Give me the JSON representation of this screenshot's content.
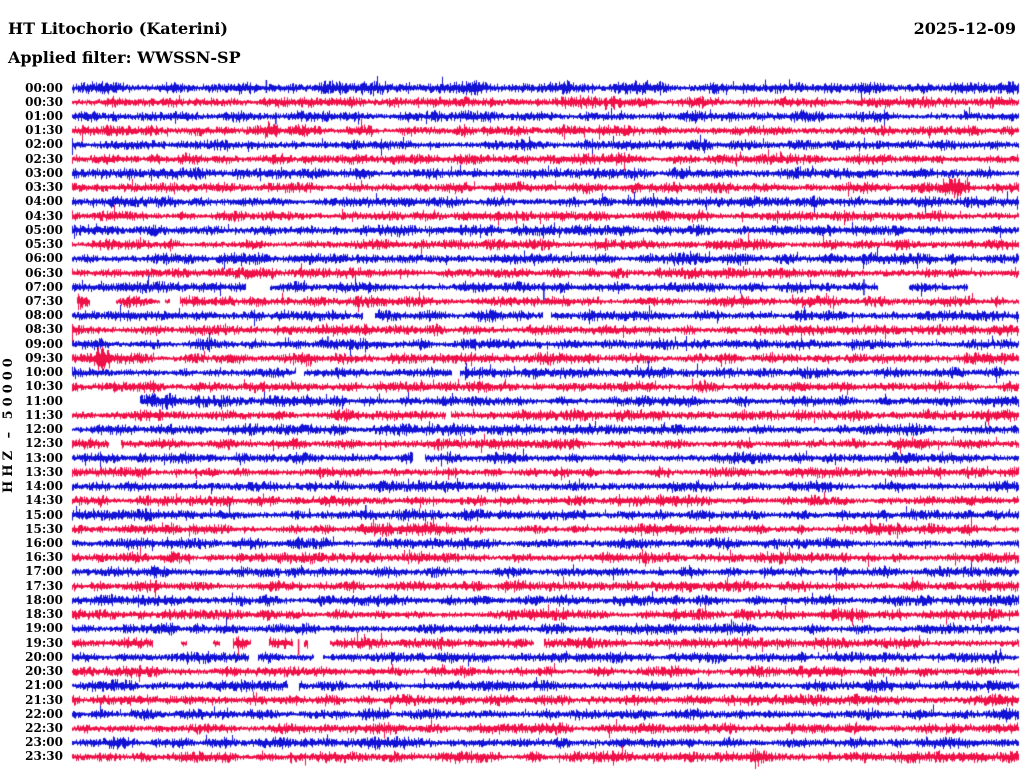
{
  "header": {
    "station": "HT Litochorio (Katerini)",
    "date": "2025-12-09",
    "filter_label": "Applied filter: WWSSN-SP",
    "scale_label": "HHZ – 50000"
  },
  "colors": {
    "blue": "#1212D6",
    "red": "#EF1048",
    "background": "#FFFFFF",
    "text": "#000000"
  },
  "chart_data": {
    "type": "helicorder",
    "title": "HT Litochorio (Katerini)",
    "date": "2025-12-09",
    "filter": "WWSSN-SP",
    "channel_scale": "HHZ – 50000",
    "row_interval_minutes": 30,
    "start_time": "00:00",
    "end_time": "23:30",
    "legend": "alternating blue/red rows, one row per 30 minutes, continuous seismic noise",
    "rows": [
      {
        "t": "00:00",
        "color": "blue",
        "amp": 1.15,
        "events": [
          {
            "type": "spike",
            "x": 0.205,
            "up": 8,
            "dn": 5
          }
        ]
      },
      {
        "t": "00:30",
        "color": "red"
      },
      {
        "t": "01:00",
        "color": "blue",
        "events": [
          {
            "type": "spike",
            "x": 0.215,
            "up": 4,
            "dn": 8
          }
        ]
      },
      {
        "t": "01:30",
        "color": "red",
        "events": [
          {
            "type": "burst",
            "x": 0.21,
            "w": 0.02,
            "amp": 1.8
          }
        ]
      },
      {
        "t": "02:00",
        "color": "blue"
      },
      {
        "t": "02:30",
        "color": "red"
      },
      {
        "t": "03:00",
        "color": "blue"
      },
      {
        "t": "03:30",
        "color": "red",
        "events": [
          {
            "type": "burst",
            "x": 0.932,
            "w": 0.04,
            "amp": 2.3
          }
        ]
      },
      {
        "t": "04:00",
        "color": "blue"
      },
      {
        "t": "04:30",
        "color": "red"
      },
      {
        "t": "05:00",
        "color": "blue"
      },
      {
        "t": "05:30",
        "color": "red"
      },
      {
        "t": "06:00",
        "color": "blue"
      },
      {
        "t": "06:30",
        "color": "red"
      },
      {
        "t": "07:00",
        "color": "blue",
        "segments": [
          [
            0,
            0.183
          ],
          [
            0.209,
            0.851
          ],
          [
            0.883,
            0.946
          ]
        ],
        "events": [
          {
            "type": "spike",
            "x": 0.498,
            "up": 5,
            "dn": 15
          },
          {
            "type": "spike",
            "x": 0.836,
            "up": 8,
            "dn": 8
          }
        ]
      },
      {
        "t": "07:30",
        "color": "red",
        "segments": [
          [
            0.005,
            0.018
          ],
          [
            0.046,
            0.092
          ],
          [
            0.098,
            0.103
          ],
          [
            0.113,
            1.0
          ]
        ],
        "events": [
          {
            "type": "burst",
            "x": 0.011,
            "w": 0.014,
            "amp": 2.0
          },
          {
            "type": "burst",
            "x": 0.069,
            "w": 0.046,
            "amp": 1.3
          }
        ]
      },
      {
        "t": "08:00",
        "color": "blue",
        "segments": [
          [
            0,
            0.307
          ],
          [
            0.319,
            0.497
          ],
          [
            0.505,
            1.0
          ]
        ],
        "events": [
          {
            "type": "burst",
            "x": 0.43,
            "w": 0.08,
            "amp": 1.3
          }
        ]
      },
      {
        "t": "08:30",
        "color": "red"
      },
      {
        "t": "09:00",
        "color": "blue",
        "events": [
          {
            "type": "spike",
            "x": 0.27,
            "up": 8,
            "dn": 4
          }
        ]
      },
      {
        "t": "09:30",
        "color": "red",
        "events": [
          {
            "type": "burst",
            "x": 0.033,
            "w": 0.025,
            "amp": 2.4
          },
          {
            "type": "burst",
            "x": 0.245,
            "w": 0.02,
            "amp": 1.5
          }
        ]
      },
      {
        "t": "10:00",
        "color": "blue",
        "segments": [
          [
            0,
            0.236
          ],
          [
            0.244,
            0.401
          ],
          [
            0.409,
            1.0
          ]
        ]
      },
      {
        "t": "10:30",
        "color": "red"
      },
      {
        "t": "11:00",
        "color": "blue",
        "segments": [
          [
            0.071,
            1.0
          ]
        ],
        "events": [
          {
            "type": "burst",
            "x": 0.095,
            "w": 0.05,
            "amp": 2.2
          },
          {
            "type": "burst",
            "x": 0.6,
            "w": 0.03,
            "amp": 1.5
          }
        ]
      },
      {
        "t": "11:30",
        "color": "red",
        "segments": [
          [
            0,
            0.394
          ],
          [
            0.4,
            1.0
          ]
        ],
        "events": [
          {
            "type": "burst",
            "x": 0.07,
            "w": 0.02,
            "amp": 1.5
          }
        ]
      },
      {
        "t": "12:00",
        "color": "blue"
      },
      {
        "t": "12:30",
        "color": "red",
        "segments": [
          [
            0,
            0.039
          ],
          [
            0.051,
            1.0
          ]
        ]
      },
      {
        "t": "13:00",
        "color": "blue",
        "segments": [
          [
            0,
            0.36
          ],
          [
            0.372,
            1.0
          ]
        ]
      },
      {
        "t": "13:30",
        "color": "red"
      },
      {
        "t": "14:00",
        "color": "blue"
      },
      {
        "t": "14:30",
        "color": "red"
      },
      {
        "t": "15:00",
        "color": "blue",
        "events": [
          {
            "type": "spike",
            "x": 0.31,
            "up": 10,
            "dn": 4
          }
        ]
      },
      {
        "t": "15:30",
        "color": "red",
        "events": [
          {
            "type": "burst",
            "x": 0.355,
            "w": 0.1,
            "amp": 1.5
          }
        ]
      },
      {
        "t": "16:00",
        "color": "blue"
      },
      {
        "t": "16:30",
        "color": "red"
      },
      {
        "t": "17:00",
        "color": "blue"
      },
      {
        "t": "17:30",
        "color": "red"
      },
      {
        "t": "18:00",
        "color": "blue"
      },
      {
        "t": "18:30",
        "color": "red"
      },
      {
        "t": "19:00",
        "color": "blue"
      },
      {
        "t": "19:30",
        "color": "red",
        "segments": [
          [
            0,
            0.085
          ],
          [
            0.115,
            0.121
          ],
          [
            0.148,
            0.156
          ],
          [
            0.17,
            0.188
          ],
          [
            0.207,
            0.233
          ],
          [
            0.244,
            0.249
          ],
          [
            0.272,
            0.487
          ],
          [
            0.498,
            1.0
          ]
        ],
        "events": [
          {
            "type": "burst",
            "x": 0.179,
            "w": 0.018,
            "amp": 1.8
          },
          {
            "type": "spike",
            "x": 0.239,
            "up": 4,
            "dn": 12
          }
        ]
      },
      {
        "t": "20:00",
        "color": "blue",
        "segments": [
          [
            0,
            0.186
          ],
          [
            0.196,
            0.255
          ],
          [
            0.265,
            1.0
          ]
        ]
      },
      {
        "t": "20:30",
        "color": "red"
      },
      {
        "t": "21:00",
        "color": "blue",
        "segments": [
          [
            0,
            0.228
          ],
          [
            0.239,
            1.0
          ]
        ]
      },
      {
        "t": "21:30",
        "color": "red"
      },
      {
        "t": "22:00",
        "color": "blue"
      },
      {
        "t": "22:30",
        "color": "red"
      },
      {
        "t": "23:00",
        "color": "blue"
      },
      {
        "t": "23:30",
        "color": "red",
        "events": [
          {
            "type": "burst",
            "x": 0.72,
            "w": 0.03,
            "amp": 1.5
          }
        ]
      }
    ]
  }
}
